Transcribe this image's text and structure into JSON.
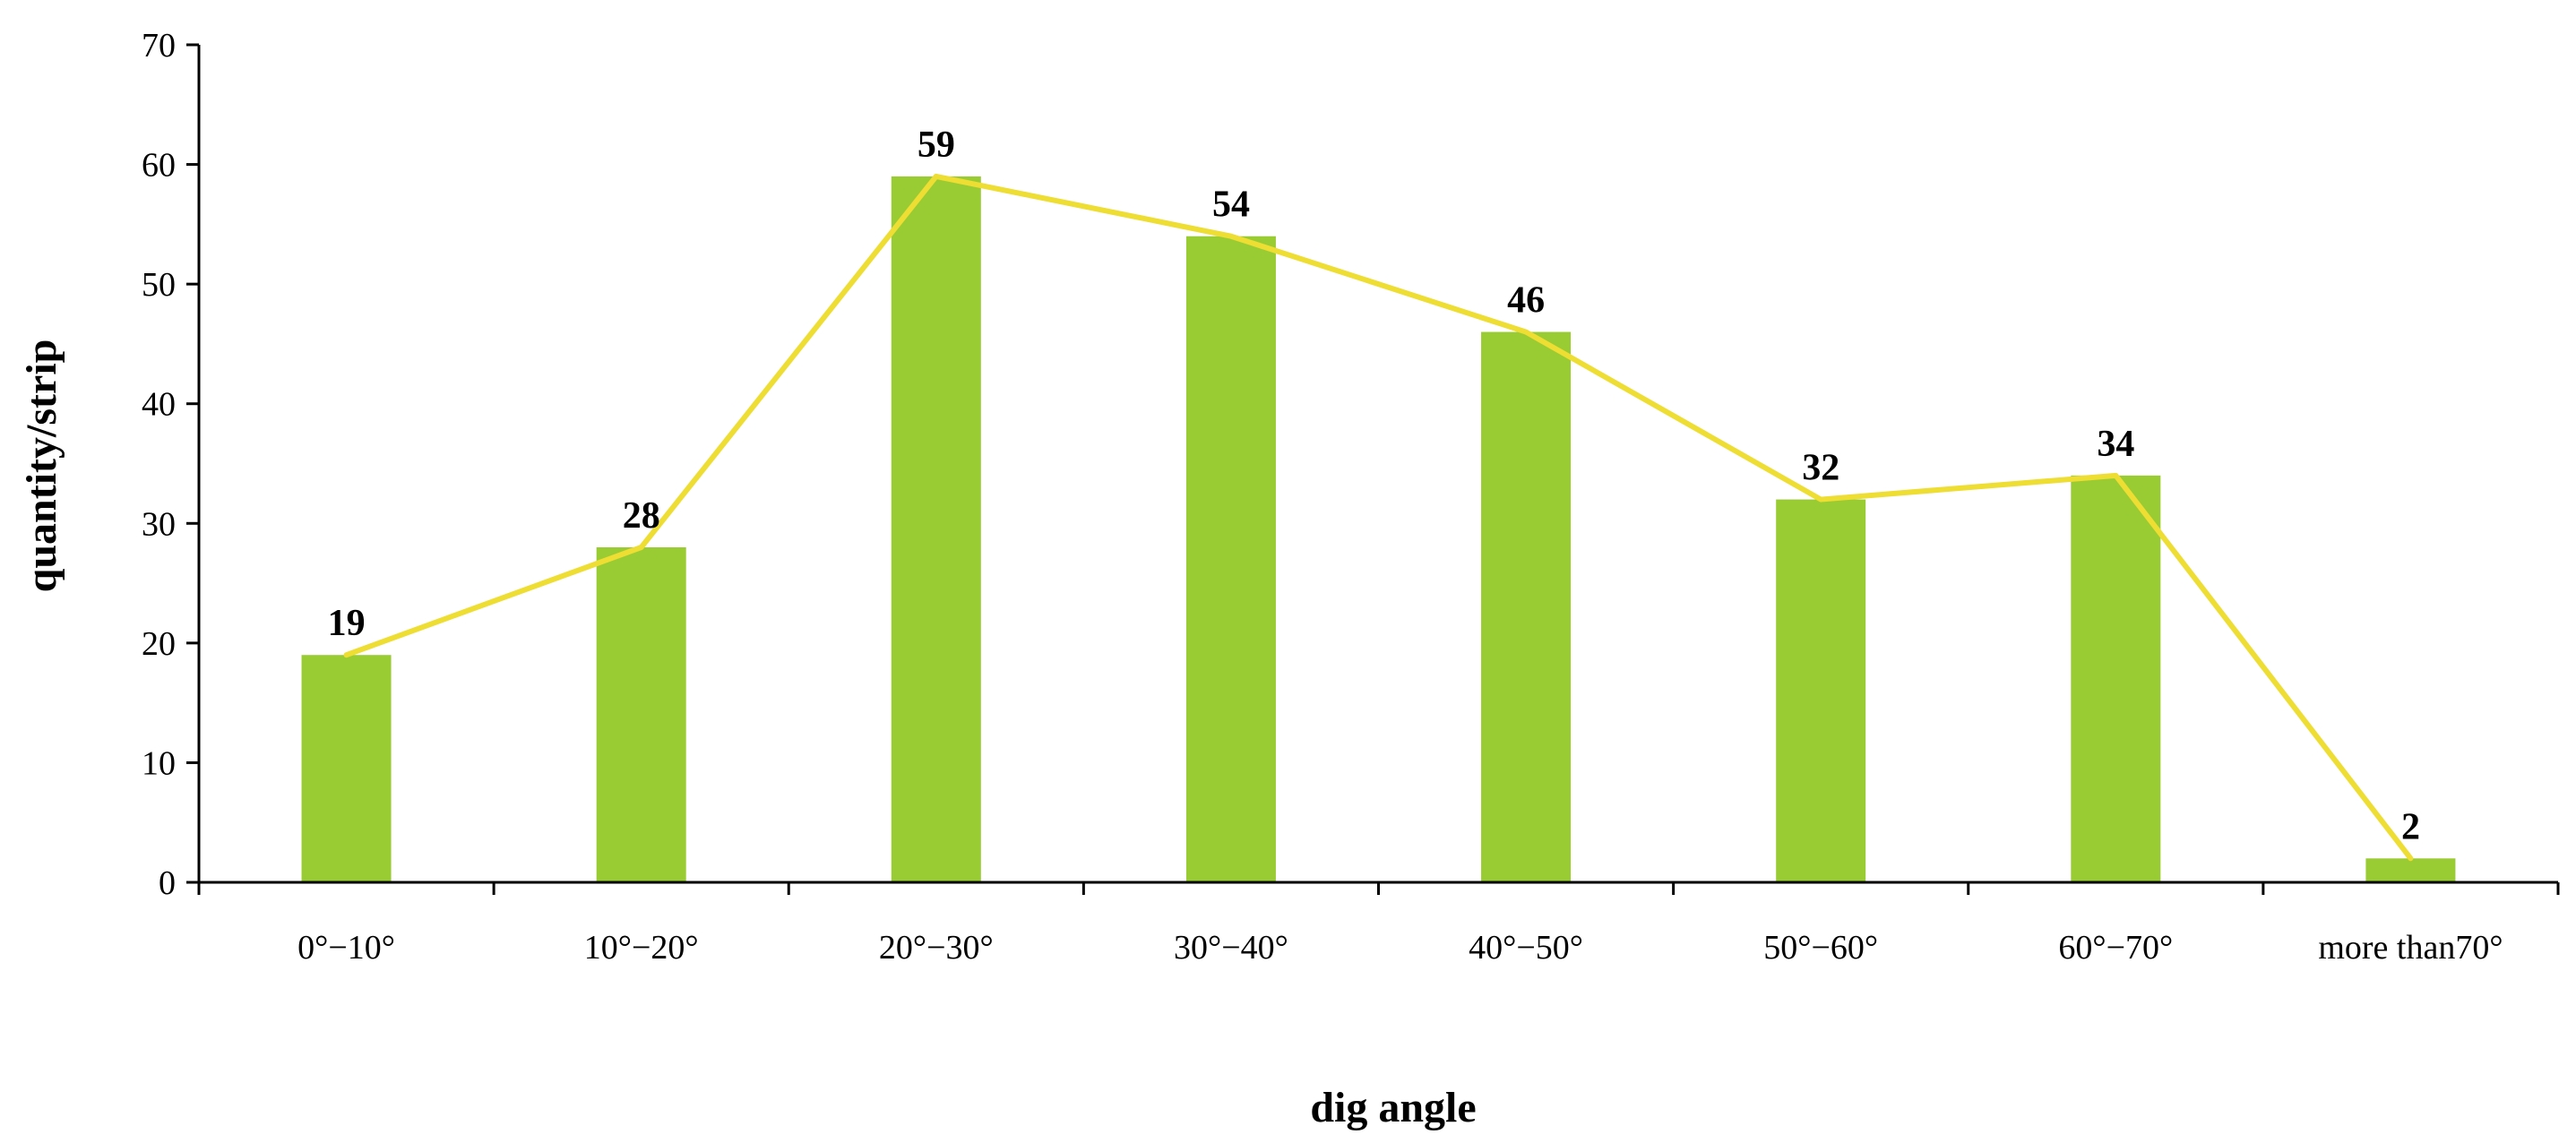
{
  "chart_data": {
    "type": "bar",
    "title": "",
    "xlabel": "dig angle",
    "ylabel": "quantity/strip",
    "categories": [
      "0°−10°",
      "10°−20°",
      "20°−30°",
      "30°−40°",
      "40°−50°",
      "50°−60°",
      "60°−70°",
      "more than70°"
    ],
    "series": [
      {
        "type": "bar",
        "values": [
          19,
          28,
          59,
          54,
          46,
          32,
          34,
          2
        ]
      },
      {
        "type": "line",
        "values": [
          19,
          28,
          59,
          54,
          46,
          32,
          34,
          2
        ]
      }
    ],
    "data_labels": [
      "19",
      "28",
      "59",
      "54",
      "46",
      "32",
      "34",
      "2"
    ],
    "ylim": [
      0,
      70
    ],
    "yticks": [
      "0",
      "10",
      "20",
      "30",
      "40",
      "50",
      "60",
      "70"
    ],
    "grid": false,
    "legend": "none",
    "colors": {
      "bar": "#99CC33",
      "line": "#EEDD33",
      "axis": "#000000"
    }
  }
}
